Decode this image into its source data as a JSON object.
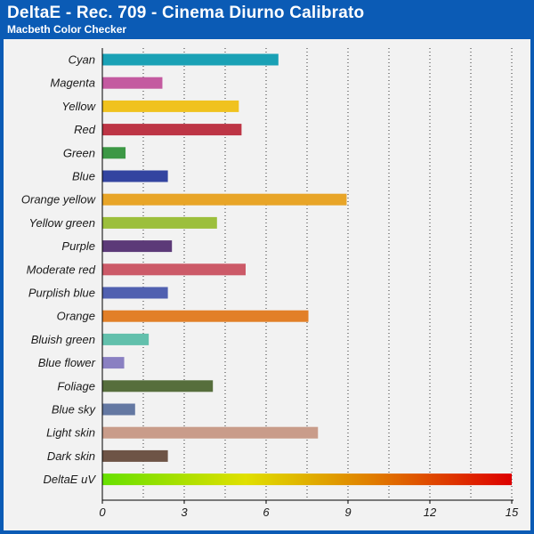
{
  "header": {
    "title": "DeltaE - Rec. 709 - Cinema Diurno Calibrato",
    "subtitle": "Macbeth Color Checker"
  },
  "chart_data": {
    "type": "bar",
    "orientation": "horizontal",
    "title": "DeltaE - Rec. 709 - Cinema Diurno Calibrato",
    "subtitle": "Macbeth Color Checker",
    "xlabel": "",
    "ylabel": "",
    "xlim": [
      0,
      15
    ],
    "xticks": [
      0,
      3,
      6,
      9,
      12,
      15
    ],
    "grid": "vertical dotted",
    "categories": [
      "Cyan",
      "Magenta",
      "Yellow",
      "Red",
      "Green",
      "Blue",
      "Orange yellow",
      "Yellow green",
      "Purple",
      "Moderate red",
      "Purplish blue",
      "Orange",
      "Bluish green",
      "Blue flower",
      "Foliage",
      "Blue sky",
      "Light skin",
      "Dark skin",
      "DeltaE uV"
    ],
    "values": [
      6.45,
      2.2,
      5.0,
      5.1,
      0.85,
      2.4,
      8.95,
      4.2,
      2.55,
      5.25,
      2.4,
      7.55,
      1.7,
      0.8,
      4.05,
      1.2,
      7.9,
      2.4,
      15
    ],
    "colors": [
      "#1aa1b5",
      "#c45aa0",
      "#f0c21e",
      "#bd3545",
      "#3c9845",
      "#3344a0",
      "#e8a528",
      "#9cbf3c",
      "#5c3a78",
      "#cc5a68",
      "#5060b0",
      "#e27f28",
      "#62c0ac",
      "#8a80c2",
      "#566e3c",
      "#6478a2",
      "#c99c8a",
      "#6e5446",
      "gradient"
    ],
    "gradient_stops": [
      "#66e000",
      "#e0e000",
      "#e08000",
      "#dd0000"
    ]
  }
}
